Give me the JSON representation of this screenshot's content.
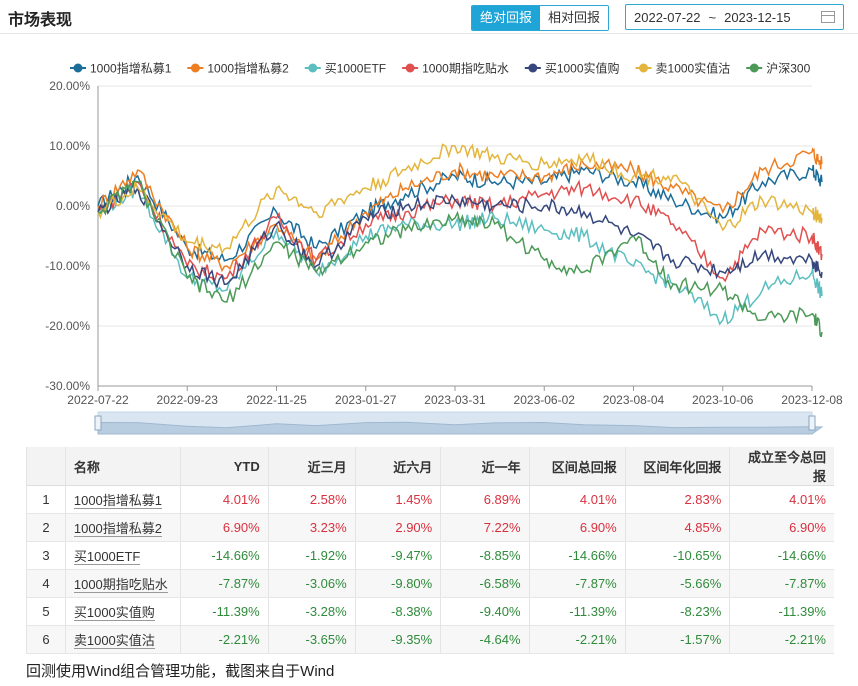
{
  "header": {
    "title": "市场表现",
    "tab_absolute": "绝对回报",
    "tab_relative": "相对回报",
    "date_start": "2022-07-22",
    "date_sep": "~",
    "date_end": "2023-12-15"
  },
  "chart_data": {
    "type": "line",
    "ylim": [
      -30,
      20
    ],
    "y_ticks": [
      "20.00%",
      "10.00%",
      "0.00%",
      "-10.00%",
      "-20.00%",
      "-30.00%"
    ],
    "y_tick_values": [
      20,
      10,
      0,
      -10,
      -20,
      -30
    ],
    "x_ticks": [
      "2022-07-22",
      "2022-09-23",
      "2022-11-25",
      "2023-01-27",
      "2023-03-31",
      "2023-06-02",
      "2023-08-04",
      "2023-10-06",
      "2023-12-08"
    ],
    "x_dates": [
      "2022-07-22",
      "2022-08-19",
      "2022-09-23",
      "2022-10-21",
      "2022-11-25",
      "2022-12-23",
      "2023-01-27",
      "2023-02-24",
      "2023-03-31",
      "2023-04-28",
      "2023-06-02",
      "2023-06-30",
      "2023-08-04",
      "2023-09-01",
      "2023-10-06",
      "2023-11-03",
      "2023-12-08",
      "2023-12-15"
    ],
    "legend_position": "top",
    "grid": "horizontal",
    "series": [
      {
        "name": "1000指增私募1",
        "color": "#1b6d9a",
        "values": [
          0,
          5,
          -7,
          -9,
          -1,
          -7,
          -1,
          2,
          5,
          4,
          4,
          6,
          4,
          1,
          -2,
          4,
          6,
          4
        ]
      },
      {
        "name": "1000指增私募2",
        "color": "#ee7e22",
        "values": [
          0,
          6,
          -7,
          -10,
          -3,
          -9,
          -1,
          3,
          6,
          5,
          5,
          7,
          6,
          3,
          -1,
          6,
          9,
          7
        ]
      },
      {
        "name": "买1000ETF",
        "color": "#5bbec0",
        "values": [
          -1,
          3,
          -12,
          -14,
          -4,
          -11,
          -5,
          -3,
          -3,
          -2,
          -4,
          -5,
          -10,
          -13,
          -19,
          -14,
          -11,
          -15
        ]
      },
      {
        "name": "1000期指吃贴水",
        "color": "#e0504f",
        "values": [
          -1,
          4,
          -10,
          -12,
          -2,
          -9,
          -3,
          -1,
          1,
          0,
          2,
          3,
          1,
          -3,
          -12,
          -4,
          -5,
          -8
        ]
      },
      {
        "name": "买1000实值购",
        "color": "#35477d",
        "values": [
          -1,
          3,
          -10,
          -13,
          -3,
          -10,
          -2,
          0,
          1,
          0,
          0,
          -1,
          -5,
          -9,
          -11,
          -8,
          -9,
          -11
        ]
      },
      {
        "name": "卖1000实值沽",
        "color": "#e3b53d",
        "values": [
          -1,
          3,
          -6,
          -7,
          3,
          -1,
          3,
          6,
          10,
          8,
          7,
          8,
          5,
          5,
          -4,
          1,
          -1,
          -2
        ]
      },
      {
        "name": "沪深300",
        "color": "#4c9a57",
        "values": [
          -1,
          4,
          -12,
          -16,
          -6,
          -11,
          -6,
          -4,
          -2,
          -3,
          -9,
          -11,
          -5,
          -13,
          -14,
          -19,
          -18,
          -21
        ]
      }
    ]
  },
  "table": {
    "headers": [
      "",
      "名称",
      "YTD",
      "近三月",
      "近六月",
      "近一年",
      "区间总回报",
      "区间年化回报",
      "成立至今总回报"
    ],
    "rows": [
      {
        "idx": "1",
        "name": "1000指增私募1",
        "ytd": "4.01%",
        "m3": "2.58%",
        "m6": "1.45%",
        "y1": "6.89%",
        "total": "4.01%",
        "ann": "2.83%",
        "since": "4.01%",
        "sign": [
          "pos",
          "pos",
          "pos",
          "pos",
          "pos",
          "pos",
          "pos"
        ]
      },
      {
        "idx": "2",
        "name": "1000指增私募2",
        "ytd": "6.90%",
        "m3": "3.23%",
        "m6": "2.90%",
        "y1": "7.22%",
        "total": "6.90%",
        "ann": "4.85%",
        "since": "6.90%",
        "sign": [
          "pos",
          "pos",
          "pos",
          "pos",
          "pos",
          "pos",
          "pos"
        ]
      },
      {
        "idx": "3",
        "name": "买1000ETF",
        "ytd": "-14.66%",
        "m3": "-1.92%",
        "m6": "-9.47%",
        "y1": "-8.85%",
        "total": "-14.66%",
        "ann": "-10.65%",
        "since": "-14.66%",
        "sign": [
          "neg",
          "neg",
          "neg",
          "neg",
          "neg",
          "neg",
          "neg"
        ]
      },
      {
        "idx": "4",
        "name": "1000期指吃贴水",
        "ytd": "-7.87%",
        "m3": "-3.06%",
        "m6": "-9.80%",
        "y1": "-6.58%",
        "total": "-7.87%",
        "ann": "-5.66%",
        "since": "-7.87%",
        "sign": [
          "neg",
          "neg",
          "neg",
          "neg",
          "neg",
          "neg",
          "neg"
        ]
      },
      {
        "idx": "5",
        "name": "买1000实值购",
        "ytd": "-11.39%",
        "m3": "-3.28%",
        "m6": "-8.38%",
        "y1": "-9.40%",
        "total": "-11.39%",
        "ann": "-8.23%",
        "since": "-11.39%",
        "sign": [
          "neg",
          "neg",
          "neg",
          "neg",
          "neg",
          "neg",
          "neg"
        ]
      },
      {
        "idx": "6",
        "name": "卖1000实值沽",
        "ytd": "-2.21%",
        "m3": "-3.65%",
        "m6": "-9.35%",
        "y1": "-4.64%",
        "total": "-2.21%",
        "ann": "-1.57%",
        "since": "-2.21%",
        "sign": [
          "neg",
          "neg",
          "neg",
          "neg",
          "neg",
          "neg",
          "neg"
        ]
      }
    ]
  },
  "footer": "回测使用Wind组合管理功能，截图来自于Wind"
}
